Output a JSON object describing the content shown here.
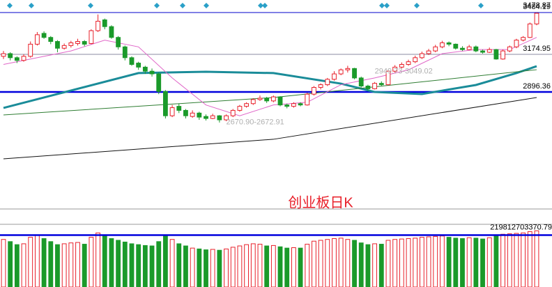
{
  "chart_data": {
    "type": "candlestick",
    "title": "创业板日K",
    "up_color": "#e8202a",
    "down_color": "#1a9a2a",
    "ylim": [
      2030,
      3577
    ],
    "ohlc": [
      [
        3160,
        3200,
        3140,
        3180
      ],
      [
        3180,
        3190,
        3130,
        3150
      ],
      [
        3150,
        3160,
        3110,
        3130
      ],
      [
        3130,
        3175,
        3120,
        3160
      ],
      [
        3160,
        3270,
        3150,
        3250
      ],
      [
        3250,
        3340,
        3240,
        3320
      ],
      [
        3330,
        3345,
        3290,
        3300
      ],
      [
        3300,
        3310,
        3250,
        3270
      ],
      [
        3270,
        3280,
        3190,
        3220
      ],
      [
        3220,
        3255,
        3210,
        3240
      ],
      [
        3240,
        3275,
        3225,
        3260
      ],
      [
        3255,
        3290,
        3240,
        3270
      ],
      [
        3270,
        3280,
        3235,
        3250
      ],
      [
        3255,
        3360,
        3250,
        3350
      ],
      [
        3350,
        3470,
        3340,
        3420
      ],
      [
        3430,
        3440,
        3360,
        3380
      ],
      [
        3380,
        3390,
        3290,
        3300
      ],
      [
        3300,
        3310,
        3210,
        3230
      ],
      [
        3230,
        3240,
        3130,
        3150
      ],
      [
        3150,
        3160,
        3090,
        3100
      ],
      [
        3110,
        3120,
        3060,
        3080
      ],
      [
        3080,
        3090,
        3030,
        3050
      ],
      [
        3050,
        3070,
        3010,
        3030
      ],
      [
        3030,
        3040,
        2880,
        2900
      ],
      [
        2900,
        2910,
        2700,
        2720
      ],
      [
        2720,
        2800,
        2710,
        2780
      ],
      [
        2790,
        2810,
        2740,
        2760
      ],
      [
        2760,
        2770,
        2700,
        2720
      ],
      [
        2715,
        2760,
        2705,
        2740
      ],
      [
        2740,
        2750,
        2690,
        2710
      ],
      [
        2715,
        2730,
        2685,
        2700
      ],
      [
        2700,
        2735,
        2695,
        2720
      ],
      [
        2720,
        2725,
        2670,
        2690
      ],
      [
        2690,
        2730,
        2680,
        2720
      ],
      [
        2720,
        2770,
        2710,
        2760
      ],
      [
        2760,
        2800,
        2750,
        2790
      ],
      [
        2790,
        2820,
        2780,
        2810
      ],
      [
        2810,
        2850,
        2800,
        2840
      ],
      [
        2840,
        2870,
        2830,
        2850
      ],
      [
        2850,
        2860,
        2815,
        2830
      ],
      [
        2830,
        2870,
        2820,
        2860
      ],
      [
        2860,
        2865,
        2790,
        2800
      ],
      [
        2800,
        2810,
        2775,
        2790
      ],
      [
        2790,
        2820,
        2780,
        2810
      ],
      [
        2810,
        2820,
        2790,
        2800
      ],
      [
        2800,
        2890,
        2795,
        2880
      ],
      [
        2880,
        2940,
        2870,
        2930
      ],
      [
        2930,
        2960,
        2915,
        2950
      ],
      [
        2950,
        3000,
        2940,
        2990
      ],
      [
        2990,
        3050,
        2980,
        3030
      ],
      [
        3030,
        3070,
        3020,
        3060
      ],
      [
        3060,
        3090,
        3040,
        3070
      ],
      [
        3070,
        3075,
        2990,
        3000
      ],
      [
        3000,
        3010,
        2930,
        2940
      ],
      [
        2940,
        2950,
        2905,
        2920
      ],
      [
        2920,
        2970,
        2915,
        2960
      ],
      [
        2960,
        2975,
        2940,
        2950
      ],
      [
        2950,
        3060,
        2945,
        3050
      ],
      [
        3050,
        3095,
        3040,
        3080
      ],
      [
        3080,
        3115,
        3070,
        3100
      ],
      [
        3100,
        3135,
        3090,
        3120
      ],
      [
        3120,
        3165,
        3110,
        3150
      ],
      [
        3150,
        3195,
        3140,
        3180
      ],
      [
        3180,
        3215,
        3170,
        3200
      ],
      [
        3200,
        3245,
        3190,
        3230
      ],
      [
        3230,
        3275,
        3220,
        3260
      ],
      [
        3260,
        3270,
        3235,
        3250
      ],
      [
        3250,
        3255,
        3210,
        3220
      ],
      [
        3220,
        3235,
        3200,
        3210
      ],
      [
        3210,
        3245,
        3205,
        3230
      ],
      [
        3230,
        3240,
        3190,
        3200
      ],
      [
        3200,
        3210,
        3180,
        3190
      ],
      [
        3190,
        3225,
        3185,
        3210
      ],
      [
        3210,
        3215,
        3135,
        3140
      ],
      [
        3140,
        3210,
        3135,
        3200
      ],
      [
        3200,
        3240,
        3190,
        3230
      ],
      [
        3230,
        3290,
        3220,
        3280
      ],
      [
        3280,
        3310,
        3270,
        3300
      ],
      [
        3300,
        3410,
        3295,
        3400
      ],
      [
        3400,
        3484.19,
        3390,
        3478.87
      ]
    ],
    "volume": [
      1100,
      1050,
      980,
      1000,
      1150,
      1200,
      1120,
      1050,
      980,
      1000,
      1020,
      1030,
      990,
      1150,
      1250,
      1180,
      1120,
      1080,
      1040,
      1000,
      980,
      960,
      950,
      1050,
      1180,
      1100,
      1000,
      950,
      900,
      880,
      860,
      870,
      850,
      880,
      920,
      950,
      980,
      1000,
      990,
      950,
      960,
      930,
      900,
      910,
      900,
      990,
      1060,
      1080,
      1100,
      1120,
      1130,
      1100,
      1080,
      1020,
      980,
      1000,
      990,
      1080,
      1100,
      1110,
      1120,
      1130,
      1150,
      1160,
      1170,
      1180,
      1150,
      1130,
      1120,
      1140,
      1130,
      1110,
      1140,
      1200,
      1220,
      1230,
      1240,
      1250,
      1280,
      1300
    ],
    "volume_ylim": [
      0,
      1450
    ],
    "volume_level": 1200,
    "volume_label": "219812703370.79",
    "levels": [
      {
        "value": 3484.19,
        "color": "#0000cc"
      },
      {
        "value": 3174.95,
        "color": "#8a8aa0"
      },
      {
        "value": 2896.36,
        "color": "#0000dd"
      }
    ],
    "annotations": [
      {
        "text": "2670.90-2672.91",
        "x": 33,
        "y": 2672
      },
      {
        "text": "2949.73-3049.02",
        "x": 55,
        "y": 3049
      }
    ],
    "series": [
      {
        "color": "#1a8c99",
        "x": [
          0,
          10,
          20,
          30,
          40,
          50,
          55,
          62,
          70,
          76,
          79
        ],
        "values": [
          2778,
          2907,
          3036,
          3046,
          3036,
          2958,
          2896,
          2881,
          2948,
          3036,
          3087
        ]
      },
      {
        "color": "#2e7d32",
        "x": [
          0,
          40,
          79
        ],
        "values": [
          2726,
          2855,
          3061
        ]
      },
      {
        "color": "#111111",
        "x": [
          0,
          40,
          79
        ],
        "values": [
          2401,
          2546,
          2855
        ]
      },
      {
        "color": "#e066c8",
        "x": [
          0,
          10,
          15,
          20,
          25,
          30,
          35,
          40,
          45,
          50,
          55,
          60,
          65,
          70,
          75,
          79
        ],
        "values": [
          3100,
          3200,
          3280,
          3230,
          3000,
          2800,
          2720,
          2800,
          2820,
          2950,
          3000,
          3060,
          3180,
          3210,
          3210,
          3300
        ]
      }
    ]
  }
}
